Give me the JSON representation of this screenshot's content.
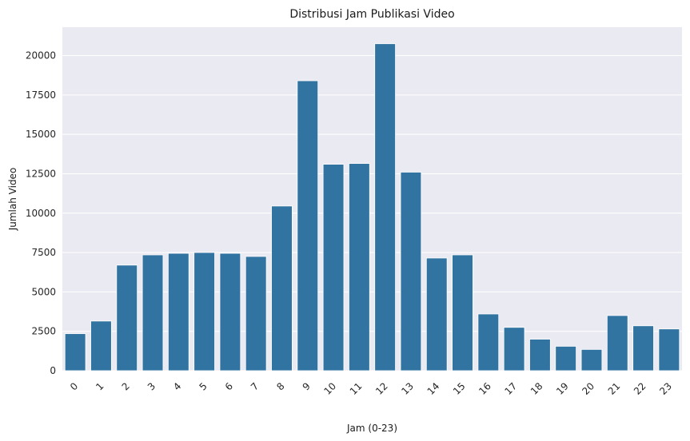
{
  "chart_data": {
    "type": "bar",
    "title": "Distribusi Jam Publikasi Video",
    "xlabel": "Jam (0-23)",
    "ylabel": "Jumlah Video",
    "categories": [
      "0",
      "1",
      "2",
      "3",
      "4",
      "5",
      "6",
      "7",
      "8",
      "9",
      "10",
      "11",
      "12",
      "13",
      "14",
      "15",
      "16",
      "17",
      "18",
      "19",
      "20",
      "21",
      "22",
      "23"
    ],
    "values": [
      2350,
      3150,
      6700,
      7350,
      7450,
      7500,
      7450,
      7250,
      10450,
      18400,
      13100,
      13150,
      20750,
      12600,
      7150,
      7350,
      3600,
      2750,
      2000,
      1550,
      1350,
      3500,
      2850,
      2650
    ],
    "ylim": [
      0,
      21800
    ],
    "yticks": [
      "0",
      "2500",
      "5000",
      "7500",
      "10000",
      "12500",
      "15000",
      "17500",
      "20000"
    ],
    "grid": true,
    "bar_color": "#3274a1",
    "background_color": "#eaeaf2",
    "grid_color": "#ffffff"
  }
}
